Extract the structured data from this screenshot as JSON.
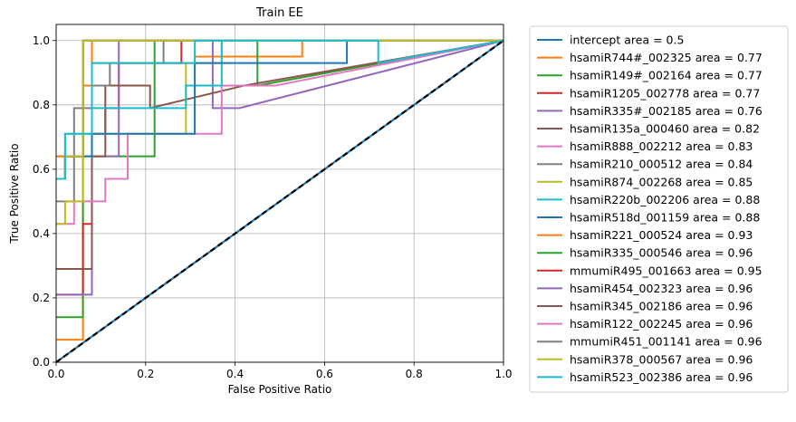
{
  "chart_data": {
    "type": "line",
    "title": "Train EE",
    "xlabel": "False Positive Ratio",
    "ylabel": "True Positive Ratio",
    "xlim": [
      0,
      1.0
    ],
    "ylim": [
      0,
      1.05
    ],
    "xticks": [
      0.0,
      0.2,
      0.4,
      0.6,
      0.8,
      1.0
    ],
    "xtick_labels": [
      "0.0",
      "0.2",
      "0.4",
      "0.6",
      "0.8",
      "1.0"
    ],
    "yticks": [
      0.0,
      0.2,
      0.4,
      0.6,
      0.8,
      1.0
    ],
    "ytick_labels": [
      "0.0",
      "0.2",
      "0.4",
      "0.6",
      "0.8",
      "1.0"
    ],
    "grid": true,
    "legend_position": "outside-right",
    "series": [
      {
        "name": "intercept area = 0.5",
        "color": "#1f77b4",
        "dashed": true,
        "x": [
          0,
          1
        ],
        "y": [
          0,
          1
        ]
      },
      {
        "name": "hsamiR744#_002325 area = 0.77",
        "color": "#ff7f0e",
        "x": [
          0,
          0.06,
          0.06,
          0.08,
          0.08,
          0.31,
          0.31,
          0.55,
          0.55,
          1.0
        ],
        "y": [
          0.07,
          0.07,
          0.86,
          0.86,
          0.93,
          0.93,
          0.95,
          0.95,
          1.0,
          1.0
        ]
      },
      {
        "name": "hsamiR149#_002164 area = 0.77",
        "color": "#2ca02c",
        "x": [
          0,
          0.06,
          0.06,
          0.22,
          0.22,
          0.45,
          0.45,
          1.0
        ],
        "y": [
          0.14,
          0.14,
          0.64,
          0.64,
          1.0,
          1.0,
          0.86,
          1.0
        ],
        "step": false
      },
      {
        "name": "hsamiR1205_002778 area = 0.77",
        "color": "#d62728",
        "x": [
          0,
          0.06,
          0.06,
          0.08,
          0.08,
          0.11,
          0.11,
          0.14,
          0.14,
          0.28,
          0.28,
          1.0
        ],
        "y": [
          0.21,
          0.21,
          0.43,
          0.43,
          0.71,
          0.71,
          0.79,
          0.79,
          0.93,
          0.93,
          1.0,
          1.0
        ]
      },
      {
        "name": "hsamiR335#_002185 area = 0.76",
        "color": "#9467bd",
        "x": [
          0,
          0.08,
          0.08,
          0.14,
          0.14,
          0.35,
          0.35,
          0.41,
          1.0
        ],
        "y": [
          0.21,
          0.21,
          0.64,
          0.64,
          1.0,
          1.0,
          0.79,
          0.79,
          1.0
        ]
      },
      {
        "name": "hsamiR135a_000460 area = 0.82",
        "color": "#8c564b",
        "x": [
          0,
          0.08,
          0.08,
          0.11,
          0.11,
          0.21,
          0.21,
          0.42,
          1.0
        ],
        "y": [
          0.29,
          0.29,
          0.64,
          0.64,
          0.86,
          0.86,
          0.79,
          0.86,
          1.0
        ]
      },
      {
        "name": "hsamiR888_002212 area = 0.83",
        "color": "#e377c2",
        "x": [
          0,
          0.04,
          0.04,
          0.11,
          0.11,
          0.16,
          0.16,
          0.37,
          0.37,
          0.49,
          1.0
        ],
        "y": [
          0.43,
          0.43,
          0.5,
          0.5,
          0.57,
          0.57,
          0.71,
          0.71,
          0.86,
          0.86,
          1.0
        ]
      },
      {
        "name": "hsamiR210_000512 area = 0.84",
        "color": "#7f7f7f",
        "x": [
          0,
          0.04,
          0.04,
          0.08,
          0.08,
          0.12,
          0.12,
          0.24,
          0.24,
          1.0
        ],
        "y": [
          0.5,
          0.5,
          0.79,
          0.79,
          0.86,
          0.86,
          0.93,
          0.93,
          1.0,
          1.0
        ]
      },
      {
        "name": "hsamiR874_002268 area = 0.85",
        "color": "#bcbd22",
        "x": [
          0,
          0.02,
          0.02,
          0.06,
          0.06,
          0.14,
          0.14,
          0.29,
          0.29,
          0.37,
          0.37,
          1.0
        ],
        "y": [
          0.43,
          0.43,
          0.5,
          0.5,
          0.71,
          0.71,
          0.71,
          0.71,
          0.93,
          0.93,
          1.0,
          1.0
        ]
      },
      {
        "name": "hsamiR220b_002206 area = 0.88",
        "color": "#17becf",
        "x": [
          0,
          0.02,
          0.02,
          0.08,
          0.08,
          0.16,
          0.16,
          0.29,
          0.29,
          0.37,
          0.37,
          1.0
        ],
        "y": [
          0.57,
          0.57,
          0.71,
          0.71,
          0.79,
          0.79,
          0.79,
          0.79,
          0.86,
          0.86,
          1.0,
          1.0
        ]
      },
      {
        "name": "hsamiR518d_001159 area = 0.88",
        "color": "#1f77b4",
        "x": [
          0,
          0.08,
          0.08,
          0.31,
          0.31,
          0.65,
          0.65,
          1.0
        ],
        "y": [
          0.64,
          0.64,
          0.71,
          0.71,
          0.93,
          0.93,
          1.0,
          1.0
        ]
      },
      {
        "name": "hsamiR221_000524 area = 0.93",
        "color": "#ff7f0e",
        "x": [
          0,
          0.06,
          0.06,
          0.08,
          0.08,
          1.0
        ],
        "y": [
          0.64,
          0.64,
          0.86,
          0.86,
          1.0,
          1.0
        ]
      },
      {
        "name": "hsamiR335_000546 area = 0.96",
        "color": "#2ca02c",
        "x": [
          0,
          0.02,
          0.02,
          0.06,
          0.06,
          1.0
        ],
        "y": [
          0.57,
          0.57,
          0.64,
          0.64,
          1.0,
          1.0
        ]
      },
      {
        "name": "mmumiR495_001663 area = 0.95",
        "color": "#d62728",
        "x": [
          0,
          0.02,
          0.02,
          0.06,
          0.06,
          1.0
        ],
        "y": [
          0.57,
          0.57,
          0.64,
          0.64,
          1.0,
          1.0
        ]
      },
      {
        "name": "hsamiR454_002323 area = 0.96",
        "color": "#9467bd",
        "x": [
          0,
          0.02,
          0.02,
          0.06,
          0.06,
          1.0
        ],
        "y": [
          0.57,
          0.57,
          0.64,
          0.64,
          1.0,
          1.0
        ]
      },
      {
        "name": "hsamiR345_002186 area = 0.96",
        "color": "#8c564b",
        "x": [
          0,
          0.02,
          0.02,
          0.06,
          0.06,
          1.0
        ],
        "y": [
          0.57,
          0.57,
          0.64,
          0.64,
          1.0,
          1.0
        ]
      },
      {
        "name": "hsamiR122_002245 area = 0.96",
        "color": "#e377c2",
        "x": [
          0,
          0.02,
          0.02,
          0.06,
          0.06,
          1.0
        ],
        "y": [
          0.57,
          0.57,
          0.64,
          0.64,
          1.0,
          1.0
        ]
      },
      {
        "name": "mmumiR451_001141 area = 0.96",
        "color": "#7f7f7f",
        "x": [
          0,
          0.02,
          0.02,
          0.06,
          0.06,
          1.0
        ],
        "y": [
          0.57,
          0.57,
          0.64,
          0.64,
          1.0,
          1.0
        ]
      },
      {
        "name": "hsamiR378_000567 area = 0.96",
        "color": "#bcbd22",
        "x": [
          0,
          0.02,
          0.02,
          0.06,
          0.06,
          1.0
        ],
        "y": [
          0.57,
          0.57,
          0.64,
          0.64,
          1.0,
          1.0
        ]
      },
      {
        "name": "hsamiR523_002386 area = 0.96",
        "color": "#17becf",
        "x": [
          0,
          0.02,
          0.02,
          0.08,
          0.08,
          0.31,
          0.31,
          0.72,
          0.72,
          1.0
        ],
        "y": [
          0.57,
          0.57,
          0.71,
          0.71,
          0.93,
          0.93,
          1.0,
          1.0,
          0.93,
          1.0
        ]
      }
    ]
  }
}
